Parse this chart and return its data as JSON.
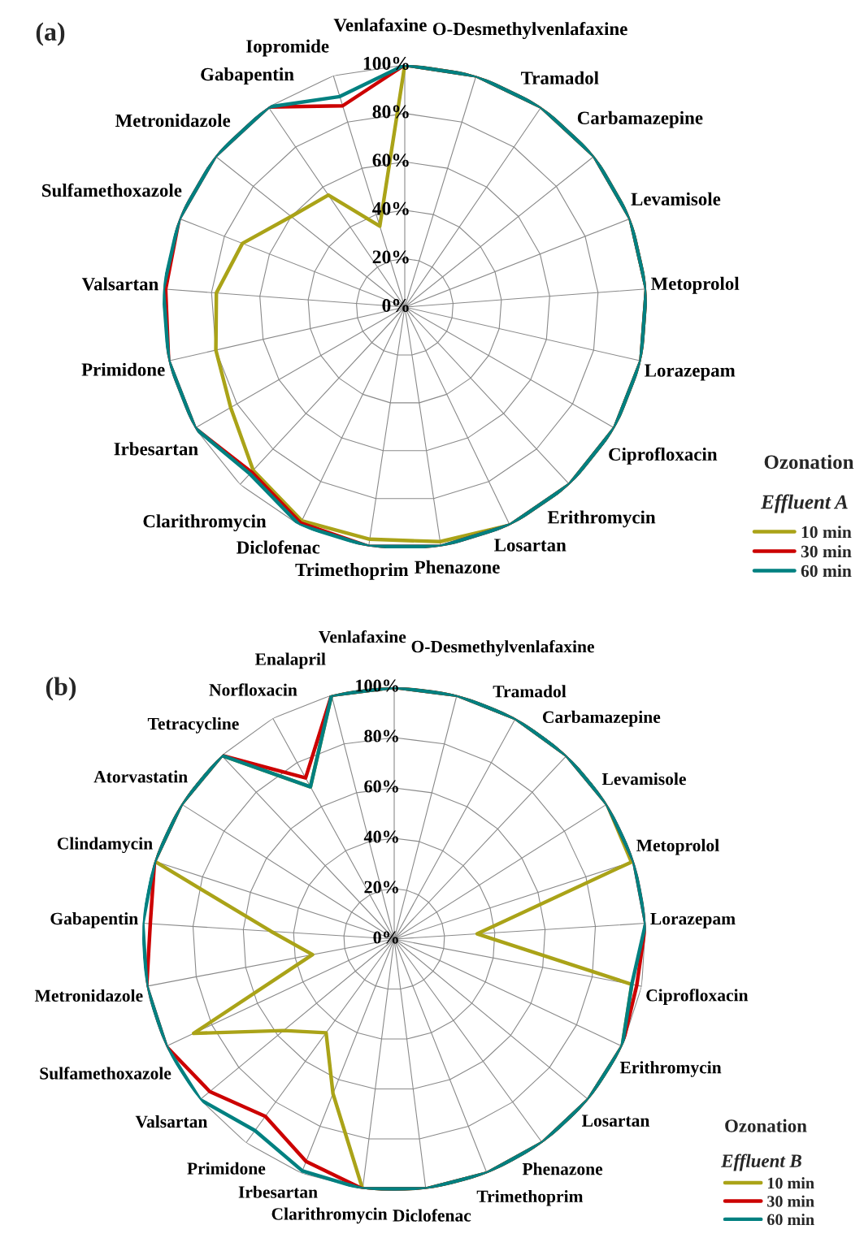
{
  "chart_data": [
    {
      "type": "radar",
      "title": "(a)",
      "categories": [
        "Venlafaxine",
        "O-Desmethylvenlafaxine",
        "Tramadol",
        "Carbamazepine",
        "Levamisole",
        "Metoprolol",
        "Lorazepam",
        "Ciprofloxacin",
        "Erithromycin",
        "Losartan",
        "Phenazone",
        "Trimethoprim",
        "Diclofenac",
        "Clarithromycin",
        "Irbesartan",
        "Primidone",
        "Valsartan",
        "Sulfamethoxazole",
        "Metronidazole",
        "Gabapentin",
        "Iopromide"
      ],
      "series": [
        {
          "name": "10 min",
          "color": "#aaa318",
          "values": [
            100,
            100,
            100,
            100,
            100,
            100,
            100,
            100,
            100,
            100,
            98,
            97,
            98,
            92,
            83,
            80,
            78,
            72,
            60,
            56,
            35
          ]
        },
        {
          "name": "30 min",
          "color": "#cc0000",
          "values": [
            100,
            100,
            100,
            100,
            100,
            100,
            100,
            100,
            100,
            100,
            100,
            100,
            99,
            93,
            100,
            100,
            99,
            100,
            100,
            100,
            87
          ]
        },
        {
          "name": "60 min",
          "color": "#008080",
          "values": [
            100,
            100,
            100,
            100,
            100,
            100,
            100,
            100,
            100,
            100,
            100,
            100,
            100,
            94,
            100,
            100,
            100,
            100,
            100,
            100,
            91
          ]
        }
      ],
      "ylim": [
        0,
        100
      ],
      "yticks": [
        {
          "value": 0,
          "label": "0%"
        },
        {
          "value": 20,
          "label": "20%"
        },
        {
          "value": 40,
          "label": "40%"
        },
        {
          "value": 60,
          "label": "60%"
        },
        {
          "value": 80,
          "label": "80%"
        },
        {
          "value": 100,
          "label": "100%"
        }
      ],
      "grid": true,
      "legend": "bottom right",
      "legend_title": "Ozonation",
      "annotations": [
        "Effluent A"
      ]
    },
    {
      "type": "radar",
      "title": "(b)",
      "categories": [
        "Venlafaxine",
        "O-Desmethylvenlafaxine",
        "Tramadol",
        "Carbamazepine",
        "Levamisole",
        "Metoprolol",
        "Lorazepam",
        "Ciprofloxacin",
        "Erithromycin",
        "Losartan",
        "Phenazone",
        "Trimethoprim",
        "Diclofenac",
        "Clarithromycin",
        "Irbesartan",
        "Primidone",
        "Valsartan",
        "Sulfamethoxazole",
        "Metronidazole",
        "Gabapentin",
        "Clindamycin",
        "Atorvastatin",
        "Tetracycline",
        "Norfloxacin",
        "Enalapril"
      ],
      "series": [
        {
          "name": "10 min",
          "color": "#aaa318",
          "values": [
            100,
            100,
            100,
            100,
            100,
            99,
            33,
            96,
            100,
            100,
            100,
            100,
            100,
            100,
            66,
            46,
            57,
            88,
            33,
            49,
            100,
            100,
            100,
            69,
            100
          ]
        },
        {
          "name": "30 min",
          "color": "#cc0000",
          "values": [
            100,
            100,
            100,
            100,
            100,
            100,
            100,
            98,
            100,
            100,
            100,
            100,
            100,
            100,
            95,
            87,
            95,
            100,
            100,
            97,
            100,
            100,
            100,
            73,
            100
          ]
        },
        {
          "name": "60 min",
          "color": "#008080",
          "values": [
            100,
            100,
            100,
            100,
            100,
            100,
            100,
            96,
            100,
            100,
            100,
            100,
            100,
            100,
            99,
            94,
            100,
            100,
            100,
            100,
            100,
            100,
            100,
            69,
            100
          ]
        }
      ],
      "ylim": [
        0,
        100
      ],
      "yticks": [
        {
          "value": 0,
          "label": "0%"
        },
        {
          "value": 20,
          "label": "20%"
        },
        {
          "value": 40,
          "label": "40%"
        },
        {
          "value": 60,
          "label": "60%"
        },
        {
          "value": 80,
          "label": "80%"
        },
        {
          "value": 100,
          "label": "100%"
        }
      ],
      "grid": true,
      "legend": "bottom right",
      "legend_title": "Ozonation",
      "annotations": [
        "Effluent B"
      ]
    }
  ]
}
